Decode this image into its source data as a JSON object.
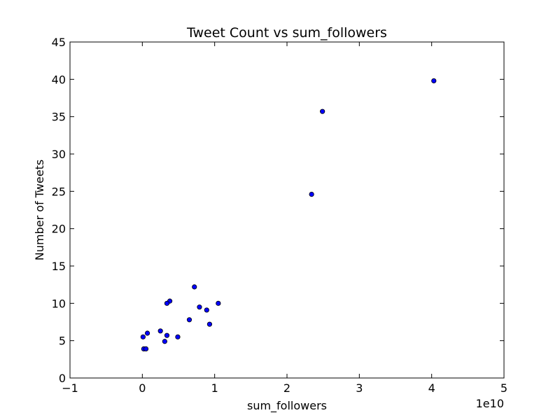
{
  "chart_data": {
    "type": "scatter",
    "title": "Tweet Count vs sum_followers",
    "xlabel": "sum_followers",
    "ylabel": "Number of Tweets",
    "x_offset_label": "1e10",
    "xlim": [
      -1,
      5
    ],
    "ylim": [
      0,
      45
    ],
    "xticks": [
      -1,
      0,
      1,
      2,
      3,
      4,
      5
    ],
    "xtick_labels": [
      "−1",
      "0",
      "1",
      "2",
      "3",
      "4",
      "5"
    ],
    "yticks": [
      0,
      5,
      10,
      15,
      20,
      25,
      30,
      35,
      40,
      45
    ],
    "ytick_labels": [
      "0",
      "5",
      "10",
      "15",
      "20",
      "25",
      "30",
      "35",
      "40",
      "45"
    ],
    "grid": false,
    "legend": "none",
    "marker_color": "#0000ff",
    "marker_edge_color": "#000000",
    "series": [
      {
        "points": [
          {
            "x": 4.03,
            "y": 39.8
          },
          {
            "x": 2.49,
            "y": 35.7
          },
          {
            "x": 2.34,
            "y": 24.6
          },
          {
            "x": 0.72,
            "y": 12.2
          },
          {
            "x": 1.05,
            "y": 10.0
          },
          {
            "x": 0.38,
            "y": 10.3
          },
          {
            "x": 0.34,
            "y": 10.0
          },
          {
            "x": 0.79,
            "y": 9.5
          },
          {
            "x": 0.89,
            "y": 9.1
          },
          {
            "x": 0.65,
            "y": 7.8
          },
          {
            "x": 0.93,
            "y": 7.2
          },
          {
            "x": 0.25,
            "y": 6.3
          },
          {
            "x": 0.07,
            "y": 6.0
          },
          {
            "x": 0.34,
            "y": 5.7
          },
          {
            "x": 0.49,
            "y": 5.5
          },
          {
            "x": 0.01,
            "y": 5.5
          },
          {
            "x": 0.31,
            "y": 4.9
          },
          {
            "x": 0.02,
            "y": 3.9
          },
          {
            "x": 0.05,
            "y": 3.9
          }
        ]
      }
    ]
  }
}
